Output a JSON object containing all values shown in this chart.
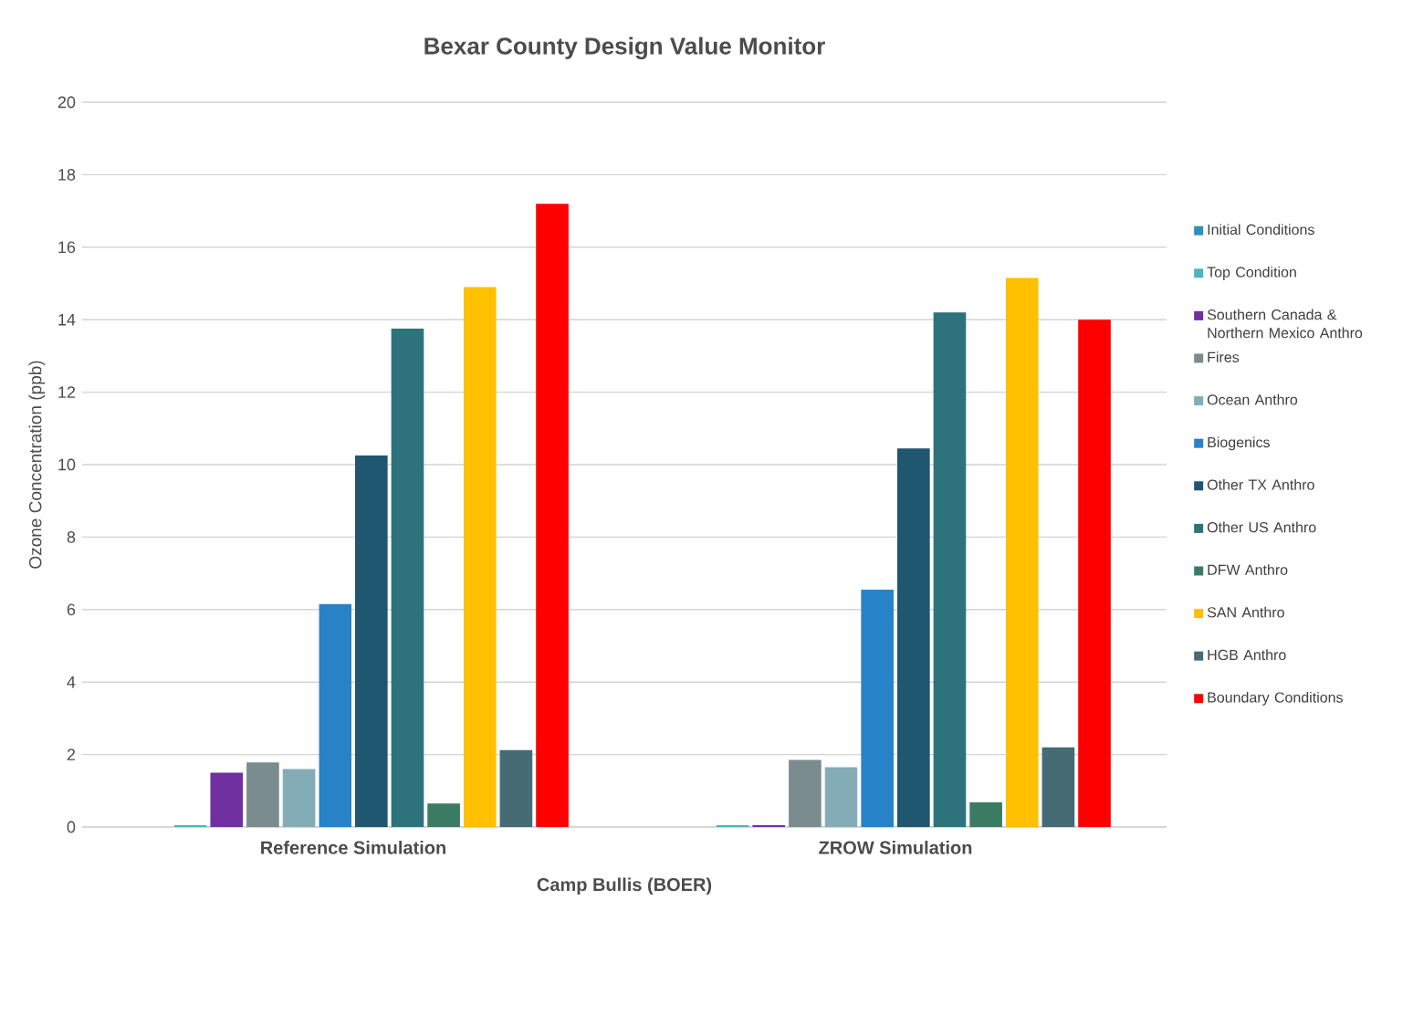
{
  "chart_data": {
    "type": "bar",
    "title": "Bexar County Design Value Monitor",
    "xlabel": "Camp Bullis (BOER)",
    "ylabel": "Ozone Concentration (ppb)",
    "categories": [
      "Reference Simulation",
      "ZROW Simulation"
    ],
    "series": [
      {
        "name": "Initial Conditions",
        "color": "#2e8fc0",
        "values": [
          0,
          0
        ]
      },
      {
        "name": "Top Condition",
        "color": "#4bb5c1",
        "values": [
          0.05,
          0.05
        ]
      },
      {
        "name": "Southern Canada & Northern Mexico Anthro",
        "color": "#7030a0",
        "values": [
          1.5,
          0.05
        ]
      },
      {
        "name": "Fires",
        "color": "#7a8c8e",
        "values": [
          1.78,
          1.85
        ]
      },
      {
        "name": "Ocean Anthro",
        "color": "#84acb6",
        "values": [
          1.6,
          1.65
        ]
      },
      {
        "name": "Biogenics",
        "color": "#2882c8",
        "values": [
          6.15,
          6.55
        ]
      },
      {
        "name": "Other TX Anthro",
        "color": "#1f5670",
        "values": [
          10.25,
          10.45
        ]
      },
      {
        "name": "Other US Anthro",
        "color": "#2e737b",
        "values": [
          13.75,
          14.2
        ]
      },
      {
        "name": "DFW Anthro",
        "color": "#3b7b64",
        "values": [
          0.65,
          0.68
        ]
      },
      {
        "name": "SAN Anthro",
        "color": "#ffc000",
        "values": [
          14.9,
          15.15
        ]
      },
      {
        "name": "HGB Anthro",
        "color": "#456b74",
        "values": [
          2.12,
          2.2
        ]
      },
      {
        "name": "Boundary Conditions",
        "color": "#ff0000",
        "values": [
          17.2,
          14.0
        ]
      }
    ],
    "ylim": [
      0,
      20
    ],
    "yticks": [
      0,
      2,
      4,
      6,
      8,
      10,
      12,
      14,
      16,
      18,
      20
    ],
    "grid": "y",
    "legend": "right"
  }
}
